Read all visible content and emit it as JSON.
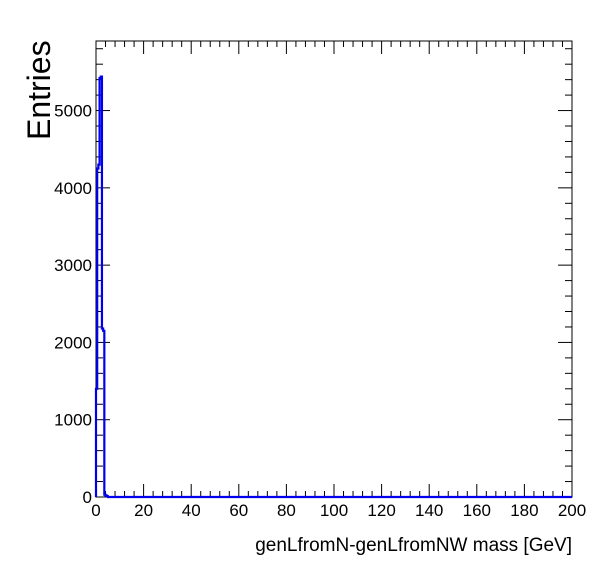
{
  "chart_data": {
    "type": "histogram",
    "title": "",
    "xlabel": "genLfromN-genLfromNW mass [GeV]",
    "ylabel": "Entries",
    "xlim": [
      0,
      200
    ],
    "ylim": [
      0,
      5900
    ],
    "x_ticks": [
      0,
      20,
      40,
      60,
      80,
      100,
      120,
      140,
      160,
      180,
      200
    ],
    "y_ticks": [
      0,
      1000,
      2000,
      3000,
      4000,
      5000
    ],
    "grid": false,
    "legend": "none",
    "bins": {
      "edges": [
        0,
        0.5,
        1,
        1.5,
        2,
        2.5,
        3,
        3.5,
        4,
        4.5,
        5,
        200
      ],
      "values": [
        1400,
        4250,
        4300,
        5420,
        5440,
        2180,
        2150,
        30,
        20,
        10,
        0
      ]
    },
    "line_color": "#0000ee"
  }
}
